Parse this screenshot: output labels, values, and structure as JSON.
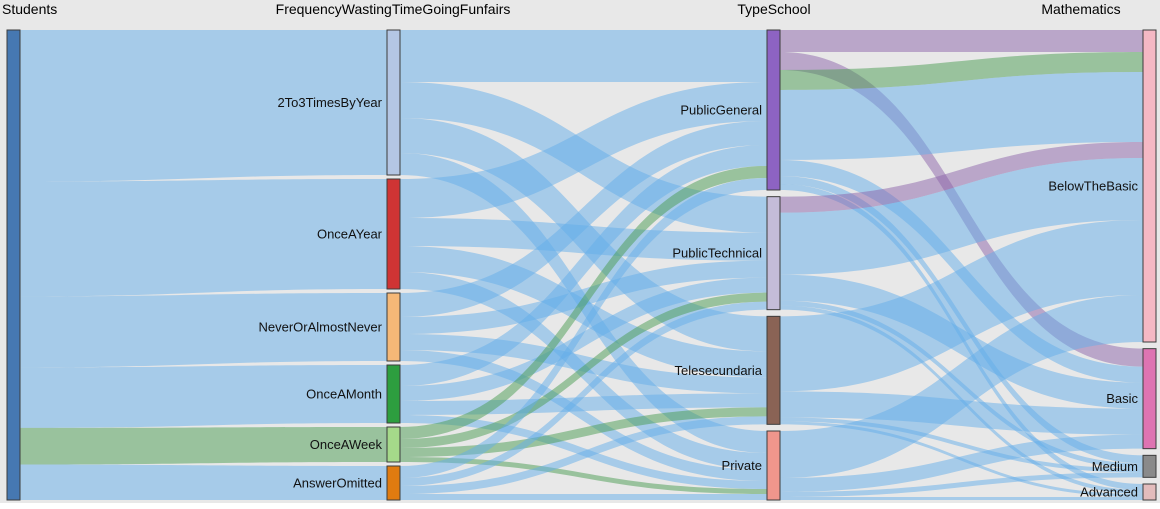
{
  "chart_data": {
    "type": "sankey",
    "columns": [
      "Students",
      "FrequencyWastingTimeGoingFunfairs",
      "TypeSchool",
      "Mathematics"
    ],
    "nodes": [
      {
        "id": "Students",
        "label": "Students",
        "column": 0,
        "color": "#4678b2",
        "hide_label": true
      },
      {
        "id": "2To3TimesByYear",
        "label": "2To3TimesByYear",
        "column": 1,
        "color": "#b4c6e4"
      },
      {
        "id": "OnceAYear",
        "label": "OnceAYear",
        "column": 1,
        "color": "#cf3434"
      },
      {
        "id": "NeverOrAlmostNever",
        "label": "NeverOrAlmostNever",
        "column": 1,
        "color": "#f5b877"
      },
      {
        "id": "OnceAMonth",
        "label": "OnceAMonth",
        "column": 1,
        "color": "#2d9e3f"
      },
      {
        "id": "OnceAWeek",
        "label": "OnceAWeek",
        "column": 1,
        "color": "#a5d98a"
      },
      {
        "id": "AnswerOmitted",
        "label": "AnswerOmitted",
        "column": 1,
        "color": "#e07b10"
      },
      {
        "id": "PublicGeneral",
        "label": "PublicGeneral",
        "column": 2,
        "color": "#8d63c3"
      },
      {
        "id": "PublicTechnical",
        "label": "PublicTechnical",
        "column": 2,
        "color": "#c4bcd8"
      },
      {
        "id": "Telesecundaria",
        "label": "Telesecundaria",
        "column": 2,
        "color": "#8a6355"
      },
      {
        "id": "Private",
        "label": "Private",
        "column": 2,
        "color": "#f0968c"
      },
      {
        "id": "BelowTheBasic",
        "label": "BelowTheBasic",
        "column": 3,
        "color": "#f5b8c4"
      },
      {
        "id": "Basic",
        "label": "Basic",
        "column": 3,
        "color": "#de74b2"
      },
      {
        "id": "Medium",
        "label": "Medium",
        "column": 3,
        "color": "#8a8a8a"
      },
      {
        "id": "Advanced",
        "label": "Advanced",
        "column": 3,
        "color": "#e3bcbc"
      }
    ],
    "links": [
      {
        "source": "Students",
        "target": "2To3TimesByYear",
        "value": 145,
        "color": "blue"
      },
      {
        "source": "Students",
        "target": "OnceAYear",
        "value": 110,
        "color": "blue"
      },
      {
        "source": "Students",
        "target": "NeverOrAlmostNever",
        "value": 68,
        "color": "blue"
      },
      {
        "source": "Students",
        "target": "OnceAMonth",
        "value": 58,
        "color": "blue"
      },
      {
        "source": "Students",
        "target": "OnceAWeek",
        "value": 35,
        "color": "green"
      },
      {
        "source": "Students",
        "target": "AnswerOmitted",
        "value": 34,
        "color": "blue"
      },
      {
        "source": "2To3TimesByYear",
        "target": "PublicGeneral",
        "value": 52,
        "color": "blue"
      },
      {
        "source": "2To3TimesByYear",
        "target": "PublicTechnical",
        "value": 36,
        "color": "blue"
      },
      {
        "source": "2To3TimesByYear",
        "target": "Telesecundaria",
        "value": 35,
        "color": "blue"
      },
      {
        "source": "2To3TimesByYear",
        "target": "Private",
        "value": 22,
        "color": "blue"
      },
      {
        "source": "OnceAYear",
        "target": "PublicGeneral",
        "value": 39,
        "color": "blue"
      },
      {
        "source": "OnceAYear",
        "target": "PublicTechnical",
        "value": 28,
        "color": "blue"
      },
      {
        "source": "OnceAYear",
        "target": "Telesecundaria",
        "value": 26,
        "color": "blue"
      },
      {
        "source": "OnceAYear",
        "target": "Private",
        "value": 17,
        "color": "blue"
      },
      {
        "source": "NeverOrAlmostNever",
        "target": "PublicGeneral",
        "value": 24,
        "color": "blue"
      },
      {
        "source": "NeverOrAlmostNever",
        "target": "PublicTechnical",
        "value": 17,
        "color": "blue"
      },
      {
        "source": "NeverOrAlmostNever",
        "target": "Telesecundaria",
        "value": 16,
        "color": "blue"
      },
      {
        "source": "NeverOrAlmostNever",
        "target": "Private",
        "value": 11,
        "color": "blue"
      },
      {
        "source": "OnceAMonth",
        "target": "PublicGeneral",
        "value": 21,
        "color": "blue"
      },
      {
        "source": "OnceAMonth",
        "target": "PublicTechnical",
        "value": 15,
        "color": "blue"
      },
      {
        "source": "OnceAMonth",
        "target": "Telesecundaria",
        "value": 14,
        "color": "blue"
      },
      {
        "source": "OnceAMonth",
        "target": "Private",
        "value": 8,
        "color": "blue"
      },
      {
        "source": "OnceAWeek",
        "target": "PublicGeneral",
        "value": 12,
        "color": "green"
      },
      {
        "source": "OnceAWeek",
        "target": "PublicTechnical",
        "value": 9,
        "color": "green"
      },
      {
        "source": "OnceAWeek",
        "target": "Telesecundaria",
        "value": 9,
        "color": "green"
      },
      {
        "source": "OnceAWeek",
        "target": "Private",
        "value": 5,
        "color": "green"
      },
      {
        "source": "AnswerOmitted",
        "target": "PublicGeneral",
        "value": 12,
        "color": "blue"
      },
      {
        "source": "AnswerOmitted",
        "target": "PublicTechnical",
        "value": 8,
        "color": "blue"
      },
      {
        "source": "AnswerOmitted",
        "target": "Telesecundaria",
        "value": 8,
        "color": "blue"
      },
      {
        "source": "AnswerOmitted",
        "target": "Private",
        "value": 6,
        "color": "blue"
      },
      {
        "source": "PublicGeneral",
        "target": "BelowTheBasic",
        "value": 22,
        "color": "purple"
      },
      {
        "source": "PublicGeneral",
        "target": "Basic",
        "value": 18,
        "color": "purple"
      },
      {
        "source": "PublicGeneral",
        "target": "BelowTheBasic",
        "value": 20,
        "color": "green"
      },
      {
        "source": "PublicGeneral",
        "target": "BelowTheBasic",
        "value": 70,
        "color": "blue"
      },
      {
        "source": "PublicGeneral",
        "target": "Basic",
        "value": 16,
        "color": "blue"
      },
      {
        "source": "PublicGeneral",
        "target": "Medium",
        "value": 8,
        "color": "blue"
      },
      {
        "source": "PublicGeneral",
        "target": "Advanced",
        "value": 6,
        "color": "blue"
      },
      {
        "source": "PublicTechnical",
        "target": "BelowTheBasic",
        "value": 16,
        "color": "purple"
      },
      {
        "source": "PublicTechnical",
        "target": "BelowTheBasic",
        "value": 62,
        "color": "blue"
      },
      {
        "source": "PublicTechnical",
        "target": "Basic",
        "value": 26,
        "color": "blue"
      },
      {
        "source": "PublicTechnical",
        "target": "Medium",
        "value": 5,
        "color": "blue"
      },
      {
        "source": "PublicTechnical",
        "target": "Advanced",
        "value": 4,
        "color": "blue"
      },
      {
        "source": "Telesecundaria",
        "target": "BelowTheBasic",
        "value": 75,
        "color": "blue"
      },
      {
        "source": "Telesecundaria",
        "target": "Basic",
        "value": 26,
        "color": "blue"
      },
      {
        "source": "Telesecundaria",
        "target": "Medium",
        "value": 4,
        "color": "blue"
      },
      {
        "source": "Telesecundaria",
        "target": "Advanced",
        "value": 3,
        "color": "blue"
      },
      {
        "source": "Private",
        "target": "BelowTheBasic",
        "value": 47,
        "color": "blue"
      },
      {
        "source": "Private",
        "target": "Basic",
        "value": 14,
        "color": "blue"
      },
      {
        "source": "Private",
        "target": "Medium",
        "value": 5,
        "color": "blue"
      },
      {
        "source": "Private",
        "target": "Advanced",
        "value": 3,
        "color": "blue"
      }
    ],
    "colors": {
      "background": "#e8e8e8",
      "node_border": "#3c3c3c",
      "link_opacity": 0.5,
      "links": {
        "blue": "#64aeea",
        "green": "#4a9b52",
        "purple": "#8c64aa"
      }
    }
  }
}
